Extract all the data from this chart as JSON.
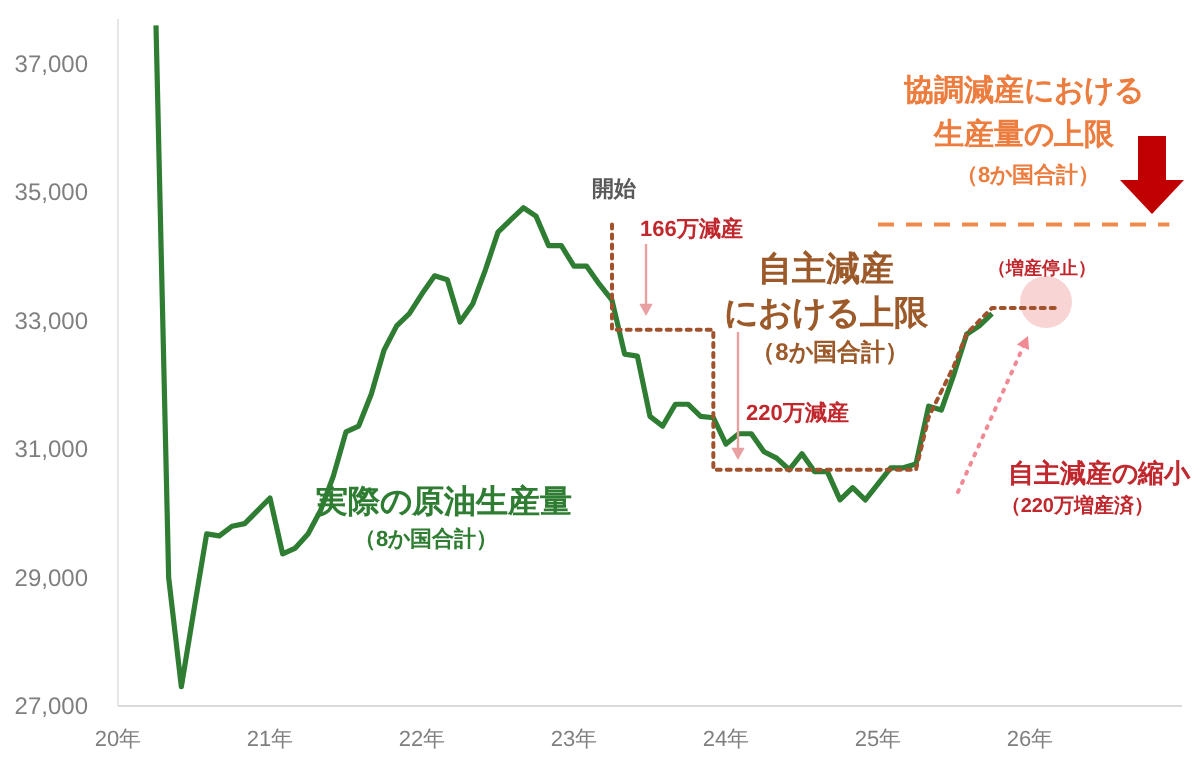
{
  "chart_data": {
    "type": "line",
    "legend": false,
    "grid": false,
    "marker": "none",
    "xlim": [
      "2020",
      "2027"
    ],
    "ylim": [
      27000,
      37700
    ],
    "xticks": [
      {
        "value": "2020",
        "label": "20年"
      },
      {
        "value": "2021",
        "label": "21年"
      },
      {
        "value": "2022",
        "label": "22年"
      },
      {
        "value": "2023",
        "label": "23年"
      },
      {
        "value": "2024",
        "label": "24年"
      },
      {
        "value": "2025",
        "label": "25年"
      },
      {
        "value": "2026",
        "label": "26年"
      }
    ],
    "yticks": [
      {
        "value": 27000,
        "label": "27,000"
      },
      {
        "value": 29000,
        "label": "29,000"
      },
      {
        "value": 31000,
        "label": "31,000"
      },
      {
        "value": 33000,
        "label": "33,000"
      },
      {
        "value": 35000,
        "label": "35,000"
      },
      {
        "value": 37000,
        "label": "37,000"
      }
    ],
    "x": [
      "2020-04",
      "2020-05",
      "2020-06",
      "2020-07",
      "2020-08",
      "2020-09",
      "2020-10",
      "2020-11",
      "2020-12",
      "2021-01",
      "2021-02",
      "2021-03",
      "2021-04",
      "2021-05",
      "2021-06",
      "2021-07",
      "2021-08",
      "2021-09",
      "2021-10",
      "2021-11",
      "2021-12",
      "2022-01",
      "2022-02",
      "2022-03",
      "2022-04",
      "2022-05",
      "2022-06",
      "2022-07",
      "2022-08",
      "2022-09",
      "2022-10",
      "2022-11",
      "2022-12",
      "2023-01",
      "2023-02",
      "2023-03",
      "2023-04",
      "2023-05",
      "2023-06",
      "2023-07",
      "2023-08",
      "2023-09",
      "2023-10",
      "2023-11",
      "2023-12",
      "2024-01",
      "2024-02",
      "2024-03",
      "2024-04",
      "2024-05",
      "2024-06",
      "2024-07",
      "2024-08",
      "2024-09",
      "2024-10",
      "2024-11",
      "2024-12",
      "2025-01",
      "2025-02",
      "2025-03",
      "2025-04",
      "2025-05",
      "2025-06",
      "2025-07",
      "2025-08",
      "2025-09",
      "2025-10"
    ],
    "series": [
      {
        "name": "実際の原油生産量",
        "color": "#2e7d32",
        "line_style": "solid",
        "values": [
          37600,
          29000,
          27300,
          28500,
          29680,
          29650,
          29800,
          29840,
          30040,
          30240,
          29370,
          29460,
          29680,
          30050,
          30580,
          31270,
          31360,
          31860,
          32540,
          32920,
          33110,
          33420,
          33700,
          33640,
          32980,
          33260,
          33790,
          34380,
          34570,
          34760,
          34630,
          34170,
          34170,
          33850,
          33850,
          33570,
          33320,
          32480,
          32450,
          31510,
          31360,
          31700,
          31700,
          31510,
          31490,
          31080,
          31240,
          31240,
          30960,
          30860,
          30680,
          30930,
          30650,
          30650,
          30210,
          30400,
          30210,
          30460,
          30710,
          30710,
          30770,
          31670,
          31610,
          32170,
          32790,
          32920,
          33110
        ]
      },
      {
        "name": "自主減産における上限",
        "color": "#a0522d",
        "line_style": "dotted",
        "x": [
          "2023-04",
          "2023-04",
          "2023-12",
          "2023-12",
          "2025-04",
          "2025-05",
          "2025-06",
          "2025-07",
          "2025-08",
          "2025-10",
          "2026-03"
        ],
        "values": [
          34500,
          32860,
          32860,
          30680,
          30680,
          31500,
          31900,
          32300,
          32800,
          33200,
          33200
        ]
      },
      {
        "name": "協調減産における生産量の上限",
        "color": "#f08a4b",
        "line_style": "dashed",
        "x": [
          "2025-01",
          "2026-12"
        ],
        "values": [
          34500,
          34500
        ]
      }
    ],
    "annotations": [
      "（8か国合計）",
      "（8か国合計）",
      "（8か国合計）",
      "開始",
      "166万減産",
      "220万減産",
      "（増産停止）",
      "自主減産の縮小",
      "（220万増産済）"
    ]
  }
}
